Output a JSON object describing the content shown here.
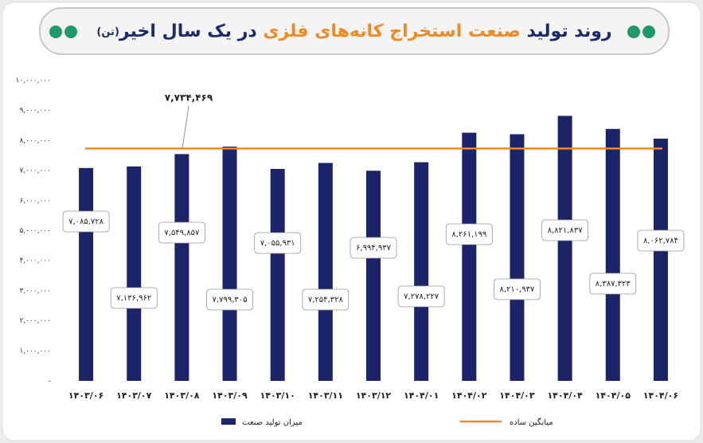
{
  "chart_data": {
    "type": "bar",
    "title": [
      "روند تولید ",
      "صنعت استخراج کانه‌های فلزی",
      " در یک سال اخیر",
      "(تن)"
    ],
    "title_colors": [
      "#1b2a6b",
      "#f08a24",
      "#1b2a6b",
      "#1b2a6b"
    ],
    "categories": [
      "۱۴۰۳/۰۶",
      "۱۴۰۳/۰۷",
      "۱۴۰۳/۰۸",
      "۱۴۰۳/۰۹",
      "۱۴۰۳/۱۰",
      "۱۴۰۳/۱۱",
      "۱۴۰۳/۱۲",
      "۱۴۰۴/۰۱",
      "۱۴۰۴/۰۲",
      "۱۴۰۴/۰۳",
      "۱۴۰۴/۰۴",
      "۱۴۰۴/۰۵",
      "۱۴۰۴/۰۶"
    ],
    "series": [
      {
        "name": "میزان تولید صنعت",
        "color": "#1b2468",
        "values": [
          7085728,
          7136962,
          7549857,
          7799305,
          7055931,
          7254328,
          6994937,
          7278227,
          8261199,
          8210937,
          8821837,
          8387323,
          8062784
        ],
        "value_labels": [
          "۷,۰۸۵,۷۲۸",
          "۷,۱۳۶,۹۶۲",
          "۷,۵۴۹,۸۵۷",
          "۷,۷۹۹,۳۰۵",
          "۷,۰۵۵,۹۳۱",
          "۷,۲۵۴,۳۲۸",
          "۶,۹۹۴,۹۳۷",
          "۷,۲۷۸,۲۲۷",
          "۸,۲۶۱,۱۹۹",
          "۸,۲۱۰,۹۳۷",
          "۸,۸۲۱,۸۳۷",
          "۸,۳۸۷,۳۲۳",
          "۸,۰۶۲,۷۸۴"
        ]
      }
    ],
    "average": {
      "name": "میانگین ساده",
      "color": "#f08a24",
      "value": 7734469,
      "value_label": "۷,۷۳۴,۴۶۹"
    },
    "ylim": [
      0,
      10000000
    ],
    "yticks": [
      {
        "value": 0,
        "label": "-"
      },
      {
        "value": 1000000,
        "label": "۱,۰۰۰,۰۰۰"
      },
      {
        "value": 2000000,
        "label": "۲,۰۰۰,۰۰۰"
      },
      {
        "value": 3000000,
        "label": "۳,۰۰۰,۰۰۰"
      },
      {
        "value": 4000000,
        "label": "۴,۰۰۰,۰۰۰"
      },
      {
        "value": 5000000,
        "label": "۵,۰۰۰,۰۰۰"
      },
      {
        "value": 6000000,
        "label": "۶,۰۰۰,۰۰۰"
      },
      {
        "value": 7000000,
        "label": "۷,۰۰۰,۰۰۰"
      },
      {
        "value": 8000000,
        "label": "۸,۰۰۰,۰۰۰"
      },
      {
        "value": 9000000,
        "label": "۹,۰۰۰,۰۰۰"
      },
      {
        "value": 10000000,
        "label": "۱۰,۰۰۰,۰۰۰"
      }
    ],
    "grid": false
  }
}
